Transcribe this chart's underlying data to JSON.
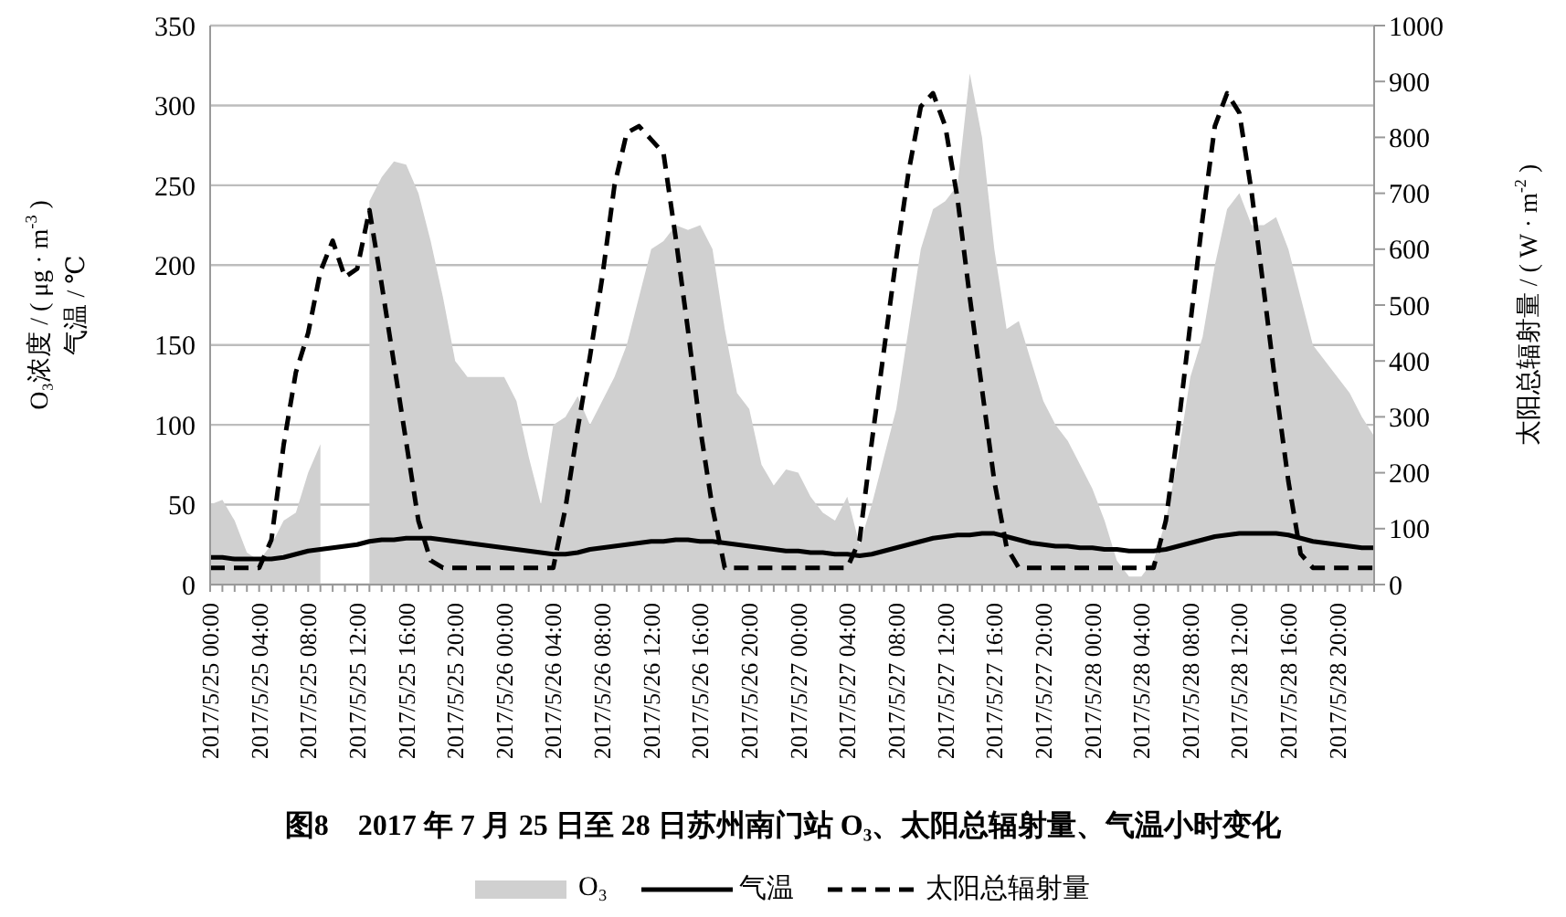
{
  "chart_data": {
    "type": "line",
    "title": "图8　2017 年 7 月 25 日至 28 日苏州南门站 O₃、太阳总辐射量、气温小时变化",
    "ylabel": "O₃浓度 / ( μg · m$^{-3}$ )\n气温 / ℃",
    "y2label": "太阳总辐射量 / ( W · m$^{-2}$ )",
    "categories": [
      "2017/5/25 00:00",
      null,
      null,
      null,
      "2017/5/25 04:00",
      null,
      null,
      null,
      "2017/5/25 08:00",
      null,
      null,
      null,
      "2017/5/25 12:00",
      null,
      null,
      null,
      "2017/5/25 16:00",
      null,
      null,
      null,
      "2017/5/25 20:00",
      null,
      null,
      null,
      "2017/5/26 00:00",
      null,
      null,
      null,
      "2017/5/26 04:00",
      null,
      null,
      null,
      "2017/5/26 08:00",
      null,
      null,
      null,
      "2017/5/26 12:00",
      null,
      null,
      null,
      "2017/5/26 16:00",
      null,
      null,
      null,
      "2017/5/26 20:00",
      null,
      null,
      null,
      "2017/5/27 00:00",
      null,
      null,
      null,
      "2017/5/27 04:00",
      null,
      null,
      null,
      "2017/5/27 08:00",
      null,
      null,
      null,
      "2017/5/27 12:00",
      null,
      null,
      null,
      "2017/5/27 16:00",
      null,
      null,
      null,
      "2017/5/27 20:00",
      null,
      null,
      null,
      "2017/5/28 00:00",
      null,
      null,
      null,
      "2017/5/28 04:00",
      null,
      null,
      null,
      "2017/5/28 08:00",
      null,
      null,
      null,
      "2017/5/28 12:00",
      null,
      null,
      null,
      "2017/5/28 16:00",
      null,
      null,
      null,
      "2017/5/28 20:00",
      null,
      null,
      null
    ],
    "series": [
      {
        "name": "O₃",
        "type": "area",
        "color": "#d0d0d0",
        "values": [
          50,
          53,
          40,
          20,
          15,
          25,
          40,
          45,
          70,
          88,
          null,
          null,
          null,
          240,
          255,
          265,
          263,
          245,
          215,
          180,
          140,
          130,
          130,
          130,
          130,
          115,
          80,
          50,
          100,
          105,
          118,
          100,
          115,
          130,
          150,
          180,
          210,
          215,
          225,
          222,
          225,
          210,
          160,
          120,
          110,
          75,
          62,
          72,
          70,
          55,
          45,
          40,
          55,
          25,
          50,
          80,
          110,
          160,
          210,
          235,
          240,
          250,
          320,
          280,
          210,
          160,
          165,
          140,
          115,
          100,
          90,
          75,
          60,
          40,
          15,
          5,
          5,
          15,
          40,
          80,
          130,
          155,
          200,
          235,
          245,
          225,
          225,
          230,
          210,
          180,
          150,
          140,
          130,
          120,
          105,
          93
        ]
      },
      {
        "name": "气温",
        "color": "#000000",
        "line_style": "solid",
        "values": [
          17,
          17,
          16,
          16,
          16,
          16,
          17,
          19,
          21,
          22,
          23,
          24,
          25,
          27,
          28,
          28,
          29,
          29,
          29,
          28,
          27,
          26,
          25,
          24,
          23,
          22,
          21,
          20,
          19,
          19,
          20,
          22,
          23,
          24,
          25,
          26,
          27,
          27,
          28,
          28,
          27,
          27,
          26,
          25,
          24,
          23,
          22,
          21,
          21,
          20,
          20,
          19,
          19,
          18,
          19,
          21,
          23,
          25,
          27,
          29,
          30,
          31,
          31,
          32,
          32,
          30,
          28,
          26,
          25,
          24,
          24,
          23,
          23,
          22,
          22,
          21,
          21,
          21,
          22,
          24,
          26,
          28,
          30,
          31,
          32,
          32,
          32,
          32,
          31,
          29,
          27,
          26,
          25,
          24,
          23,
          23
        ]
      },
      {
        "name": "太阳总辐射量",
        "axis": "y2",
        "color": "#000000",
        "line_style": "dashed",
        "values": [
          30,
          30,
          30,
          30,
          30,
          80,
          250,
          380,
          450,
          560,
          615,
          550,
          565,
          670,
          537,
          396,
          255,
          114,
          43,
          30,
          30,
          30,
          30,
          30,
          30,
          30,
          30,
          30,
          30,
          137,
          279,
          408,
          549,
          714,
          808,
          820,
          796,
          772,
          620,
          455,
          279,
          137,
          30,
          30,
          30,
          30,
          30,
          30,
          30,
          30,
          30,
          30,
          30,
          79,
          255,
          420,
          585,
          738,
          855,
          879,
          820,
          690,
          514,
          349,
          185,
          67,
          30,
          30,
          30,
          30,
          30,
          30,
          30,
          30,
          30,
          30,
          30,
          30,
          114,
          279,
          467,
          655,
          820,
          879,
          844,
          702,
          526,
          349,
          185,
          55,
          30,
          30,
          30,
          30,
          30,
          30
        ]
      }
    ],
    "ylim": [
      0,
      350
    ],
    "yticks": [
      0,
      50,
      100,
      150,
      200,
      250,
      300,
      350
    ],
    "y2lim": [
      0,
      1000
    ],
    "y2ticks": [
      0,
      100,
      200,
      300,
      400,
      500,
      600,
      700,
      800,
      900,
      1000
    ],
    "grid": "y",
    "legend": "bottom",
    "marker": "none"
  }
}
